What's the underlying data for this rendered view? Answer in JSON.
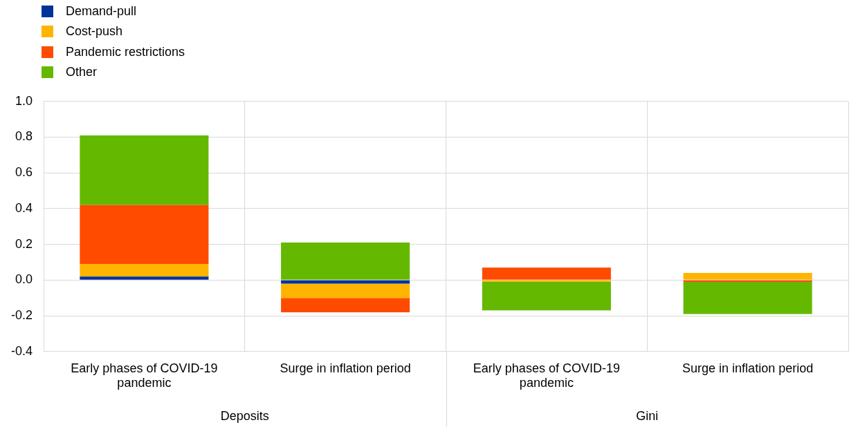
{
  "chart_data": {
    "type": "bar",
    "stacked": true,
    "categories": [
      "Early phases of COVID-19 pandemic",
      "Surge in inflation period",
      "Early phases of COVID-19 pandemic",
      "Surge in inflation period"
    ],
    "series": [
      {
        "name": "Demand-pull",
        "color": "#003299",
        "values": [
          0.02,
          -0.02,
          0,
          0
        ]
      },
      {
        "name": "Cost-push",
        "color": "#ffb400",
        "values": [
          0.07,
          -0.08,
          -0.01,
          0.04
        ]
      },
      {
        "name": "Pandemic restrictions",
        "color": "#ff4b00",
        "values": [
          0.33,
          -0.08,
          0.07,
          -0.01
        ]
      },
      {
        "name": "Other",
        "color": "#65b800",
        "values": [
          0.39,
          0.21,
          -0.16,
          -0.18
        ]
      }
    ],
    "annotations": [
      "Deposits",
      "Gini"
    ],
    "ylim": [
      -0.4,
      1.0
    ],
    "yticks": [
      {
        "value": -0.4,
        "label": "-0.4"
      },
      {
        "value": -0.2,
        "label": "-0.2"
      },
      {
        "value": 0,
        "label": "0.0"
      },
      {
        "value": 0.2,
        "label": "0.2"
      },
      {
        "value": 0.4,
        "label": "0.4"
      },
      {
        "value": 0.6,
        "label": "0.6"
      },
      {
        "value": 0.8,
        "label": "0.8"
      },
      {
        "value": 1.0,
        "label": "1.0"
      }
    ],
    "grid": true,
    "legend": "top left"
  }
}
